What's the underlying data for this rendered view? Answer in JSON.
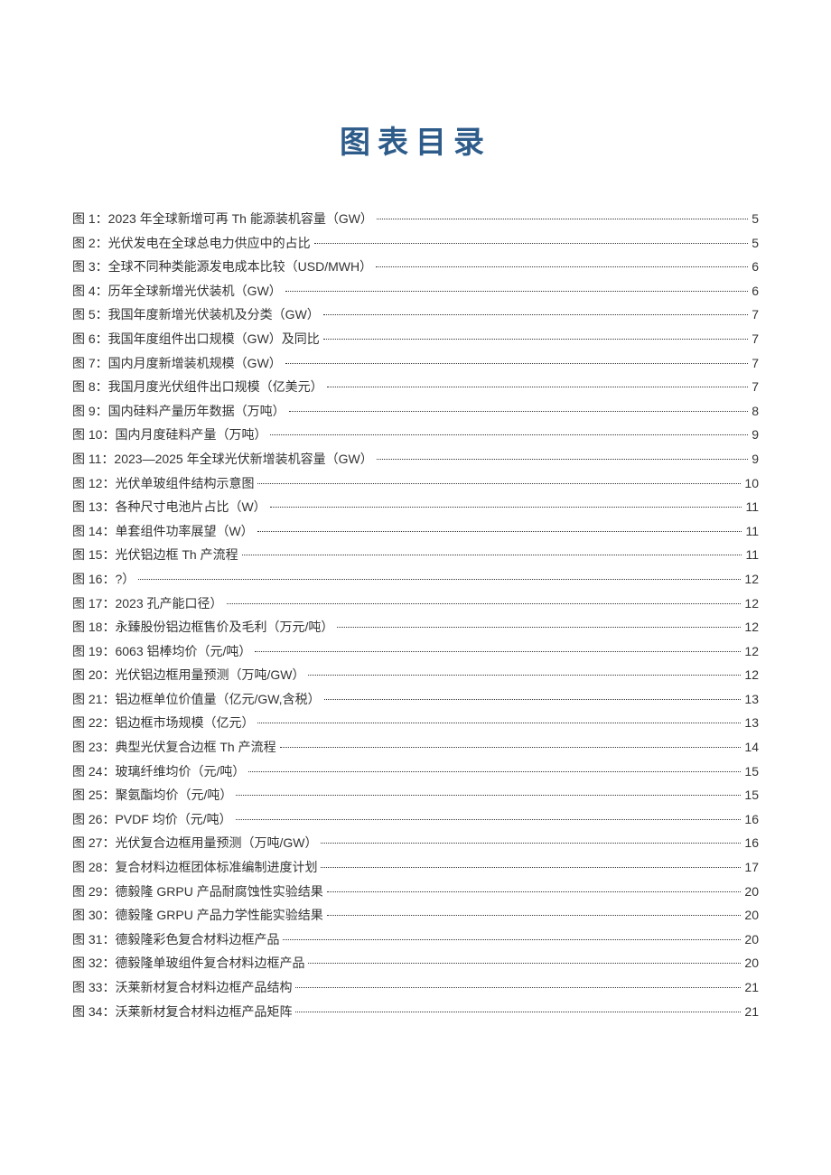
{
  "title": "图表目录",
  "title_color": "#2e5c8a",
  "title_fontsize": 34,
  "entry_fontsize": 14,
  "entry_color": "#333333",
  "background_color": "#ffffff",
  "entries": [
    {
      "num": "图 1",
      "label": "2023 年全球新增可再 Th 能源装机容量（GW）",
      "page": "5"
    },
    {
      "num": "图 2",
      "label": "光伏发电在全球总电力供应中的占比",
      "page": "5"
    },
    {
      "num": "图 3",
      "label": "全球不同种类能源发电成本比较（USD/MWH）",
      "page": "6"
    },
    {
      "num": "图 4",
      "label": "历年全球新增光伏装机（GW）",
      "page": "6"
    },
    {
      "num": "图 5",
      "label": "我国年度新增光伏装机及分类（GW）",
      "page": "7"
    },
    {
      "num": "图 6",
      "label": "我国年度组件出口规模（GW）及同比",
      "page": "7"
    },
    {
      "num": "图 7",
      "label": "国内月度新增装机规模（GW）",
      "page": "7"
    },
    {
      "num": "图 8",
      "label": "我国月度光伏组件出口规模（亿美元）",
      "page": "7"
    },
    {
      "num": "图 9",
      "label": "国内硅料产量历年数据（万吨）",
      "page": "8"
    },
    {
      "num": "图 10",
      "label": "国内月度硅料产量（万吨）",
      "page": "9"
    },
    {
      "num": "图 11",
      "label": "2023—2025 年全球光伏新增装机容量（GW）",
      "page": "9"
    },
    {
      "num": "图 12",
      "label": "光伏单玻组件结构示意图",
      "page": "10"
    },
    {
      "num": "图 13",
      "label": "各种尺寸电池片占比（W）",
      "page": "11"
    },
    {
      "num": "图 14",
      "label": "单套组件功率展望（W）",
      "page": "11"
    },
    {
      "num": "图 15",
      "label": "光伏铝边框 Th 产流程",
      "page": "11"
    },
    {
      "num": "图 16",
      "label": "?）",
      "page": "12"
    },
    {
      "num": "图 17",
      "label": "2023 孔产能口径）",
      "page": "12"
    },
    {
      "num": "图 18",
      "label": "永臻股份铝边框售价及毛利（万元/吨）",
      "page": "12"
    },
    {
      "num": "图 19",
      "label": "6063 铝棒均价（元/吨）",
      "page": "12"
    },
    {
      "num": "图 20",
      "label": "光伏铝边框用量预测（万吨/GW）",
      "page": "12"
    },
    {
      "num": "图 21",
      "label": "铝边框单位价值量（亿元/GW,含税）",
      "page": "13"
    },
    {
      "num": "图 22",
      "label": "铝边框市场规模（亿元）",
      "page": "13"
    },
    {
      "num": "图 23",
      "label": "典型光伏复合边框 Th 产流程",
      "page": "14"
    },
    {
      "num": "图 24",
      "label": "玻璃纤维均价（元/吨）",
      "page": "15"
    },
    {
      "num": "图 25",
      "label": "聚氨酯均价（元/吨）",
      "page": "15"
    },
    {
      "num": "图 26",
      "label": "PVDF 均价（元/吨）",
      "page": "16"
    },
    {
      "num": "图 27",
      "label": "光伏复合边框用量预测（万吨/GW）",
      "page": "16"
    },
    {
      "num": "图 28",
      "label": "复合材料边框团体标准编制进度计划",
      "page": "17"
    },
    {
      "num": "图 29",
      "label": "德毅隆 GRPU 产品耐腐蚀性实验结果",
      "page": "20"
    },
    {
      "num": "图 30",
      "label": "德毅隆 GRPU 产品力学性能实验结果",
      "page": "20"
    },
    {
      "num": "图 31",
      "label": "德毅隆彩色复合材料边框产品",
      "page": "20"
    },
    {
      "num": "图 32",
      "label": "德毅隆单玻组件复合材料边框产品",
      "page": "20"
    },
    {
      "num": "图 33",
      "label": "沃莱新材复合材料边框产品结构",
      "page": "21"
    },
    {
      "num": "图 34",
      "label": "沃莱新材复合材料边框产品矩阵",
      "page": "21"
    }
  ]
}
